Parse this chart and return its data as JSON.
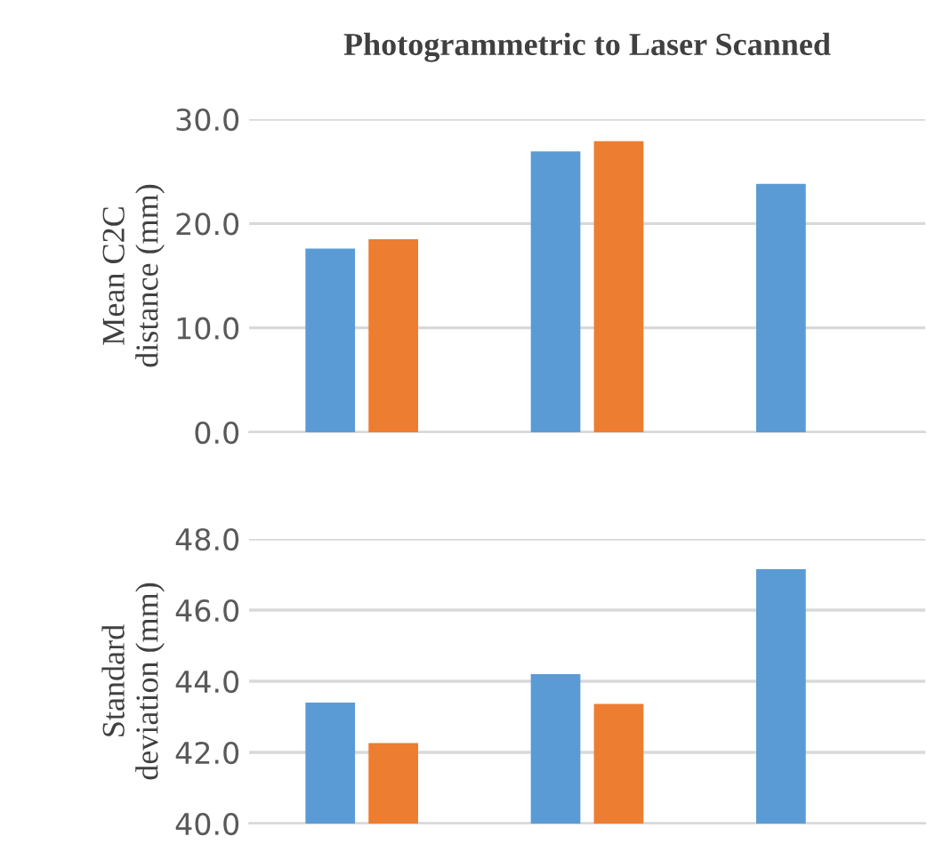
{
  "chart_data": [
    {
      "type": "bar",
      "title": "Photogrammetric to Laser Scanned",
      "ylabel": "Mean C2C\ndistance (mm)",
      "categories": [
        null,
        null,
        null
      ],
      "series": [
        {
          "color": "#5b9bd5",
          "values": [
            17.6,
            26.9,
            23.8
          ]
        },
        {
          "color": "#ed7d31",
          "values": [
            18.5,
            27.9,
            null
          ]
        }
      ],
      "ylim": [
        0,
        30
      ],
      "yticks": [
        {
          "value": 0,
          "label": "0.0"
        },
        {
          "value": 10,
          "label": "10.0"
        },
        {
          "value": 20,
          "label": "20.0"
        },
        {
          "value": 30,
          "label": "30.0"
        }
      ],
      "grid": "y",
      "tick_labels": "y"
    },
    {
      "type": "bar",
      "ylabel": "Standard\ndeviation (mm)",
      "categories": [
        null,
        null,
        null
      ],
      "series": [
        {
          "color": "#5b9bd5",
          "values": [
            43.4,
            44.2,
            47.15
          ]
        },
        {
          "color": "#ed7d31",
          "values": [
            42.26,
            43.36,
            null
          ]
        }
      ],
      "ylim": [
        40,
        48
      ],
      "yticks": [
        {
          "value": 40,
          "label": "40.0"
        },
        {
          "value": 42,
          "label": "42.0"
        },
        {
          "value": 44,
          "label": "44.0"
        },
        {
          "value": 46,
          "label": "46.0"
        },
        {
          "value": 48,
          "label": "48.0"
        }
      ],
      "grid": "y",
      "tick_labels": "y"
    }
  ]
}
